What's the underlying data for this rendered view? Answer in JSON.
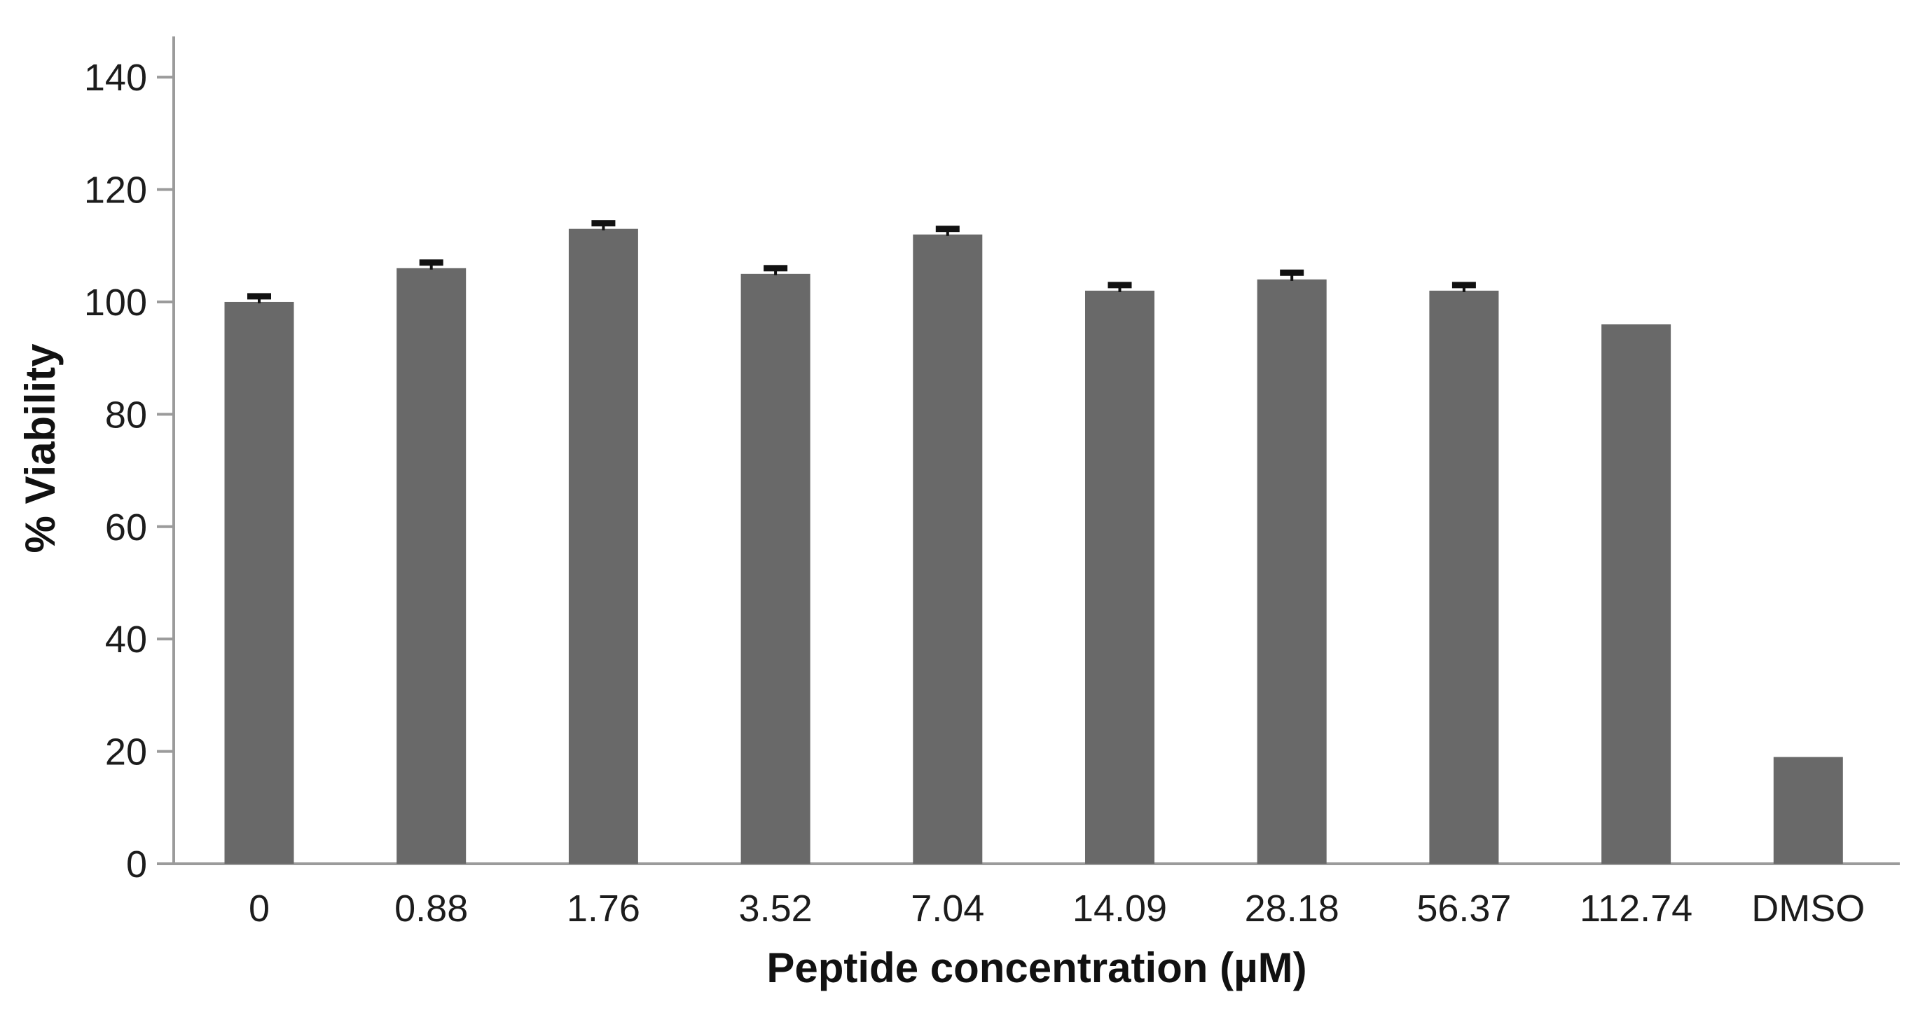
{
  "chart_data": {
    "type": "bar",
    "title": "",
    "categories": [
      "0",
      "0.88",
      "1.76",
      "3.52",
      "7.04",
      "14.09",
      "28.18",
      "56.37",
      "112.74",
      "DMSO"
    ],
    "values": [
      100,
      106,
      113,
      105,
      112,
      102,
      104,
      102,
      96,
      19
    ],
    "error_up": [
      1,
      1,
      1,
      1,
      1,
      1,
      1.2,
      1,
      0,
      0
    ],
    "xlabel": "Peptide concentration (µM)",
    "ylabel": "% Viability",
    "yticks": [
      0,
      20,
      40,
      60,
      80,
      100,
      120,
      140
    ],
    "ylim": [
      0,
      147
    ],
    "grid": false,
    "legend": false,
    "colors": {
      "bar": "#696969",
      "axis": "#9b9b9b",
      "error_bar": "#111111",
      "text": "#1c1c1c",
      "background": "#ffffff"
    }
  }
}
